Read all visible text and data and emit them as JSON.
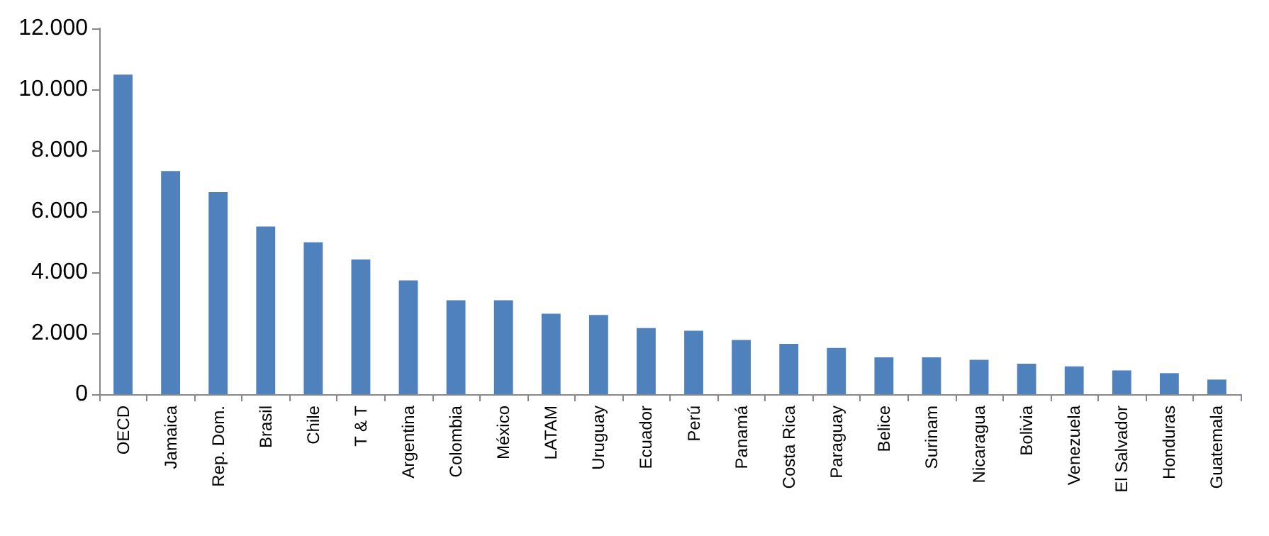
{
  "chart_data": {
    "type": "bar",
    "categories": [
      "OECD",
      "Jamaica",
      "Rep. Dom.",
      "Brasil",
      "Chile",
      "T & T",
      "Argentina",
      "Colombia",
      "México",
      "LATAM",
      "Uruguay",
      "Ecuador",
      "Perú",
      "Panamá",
      "Costa Rica",
      "Paraguay",
      "Belice",
      "Surinam",
      "Nicaragua",
      "Bolivia",
      "Venezuela",
      "El Salvador",
      "Honduras",
      "Guatemala"
    ],
    "values": [
      10480,
      7320,
      6630,
      5500,
      4980,
      4420,
      3730,
      3080,
      3080,
      2640,
      2600,
      2170,
      2080,
      1780,
      1650,
      1520,
      1210,
      1210,
      1130,
      1000,
      910,
      780,
      690,
      480
    ],
    "color": "#4f81bd",
    "ylim": [
      0,
      12000
    ],
    "yticks": [
      {
        "value": 0,
        "label": "0"
      },
      {
        "value": 2000,
        "label": "2.000"
      },
      {
        "value": 4000,
        "label": "4.000"
      },
      {
        "value": 6000,
        "label": "6.000"
      },
      {
        "value": 8000,
        "label": "8.000"
      },
      {
        "value": 10000,
        "label": "10.000"
      },
      {
        "value": 12000,
        "label": "12.000"
      }
    ],
    "grid": false
  }
}
